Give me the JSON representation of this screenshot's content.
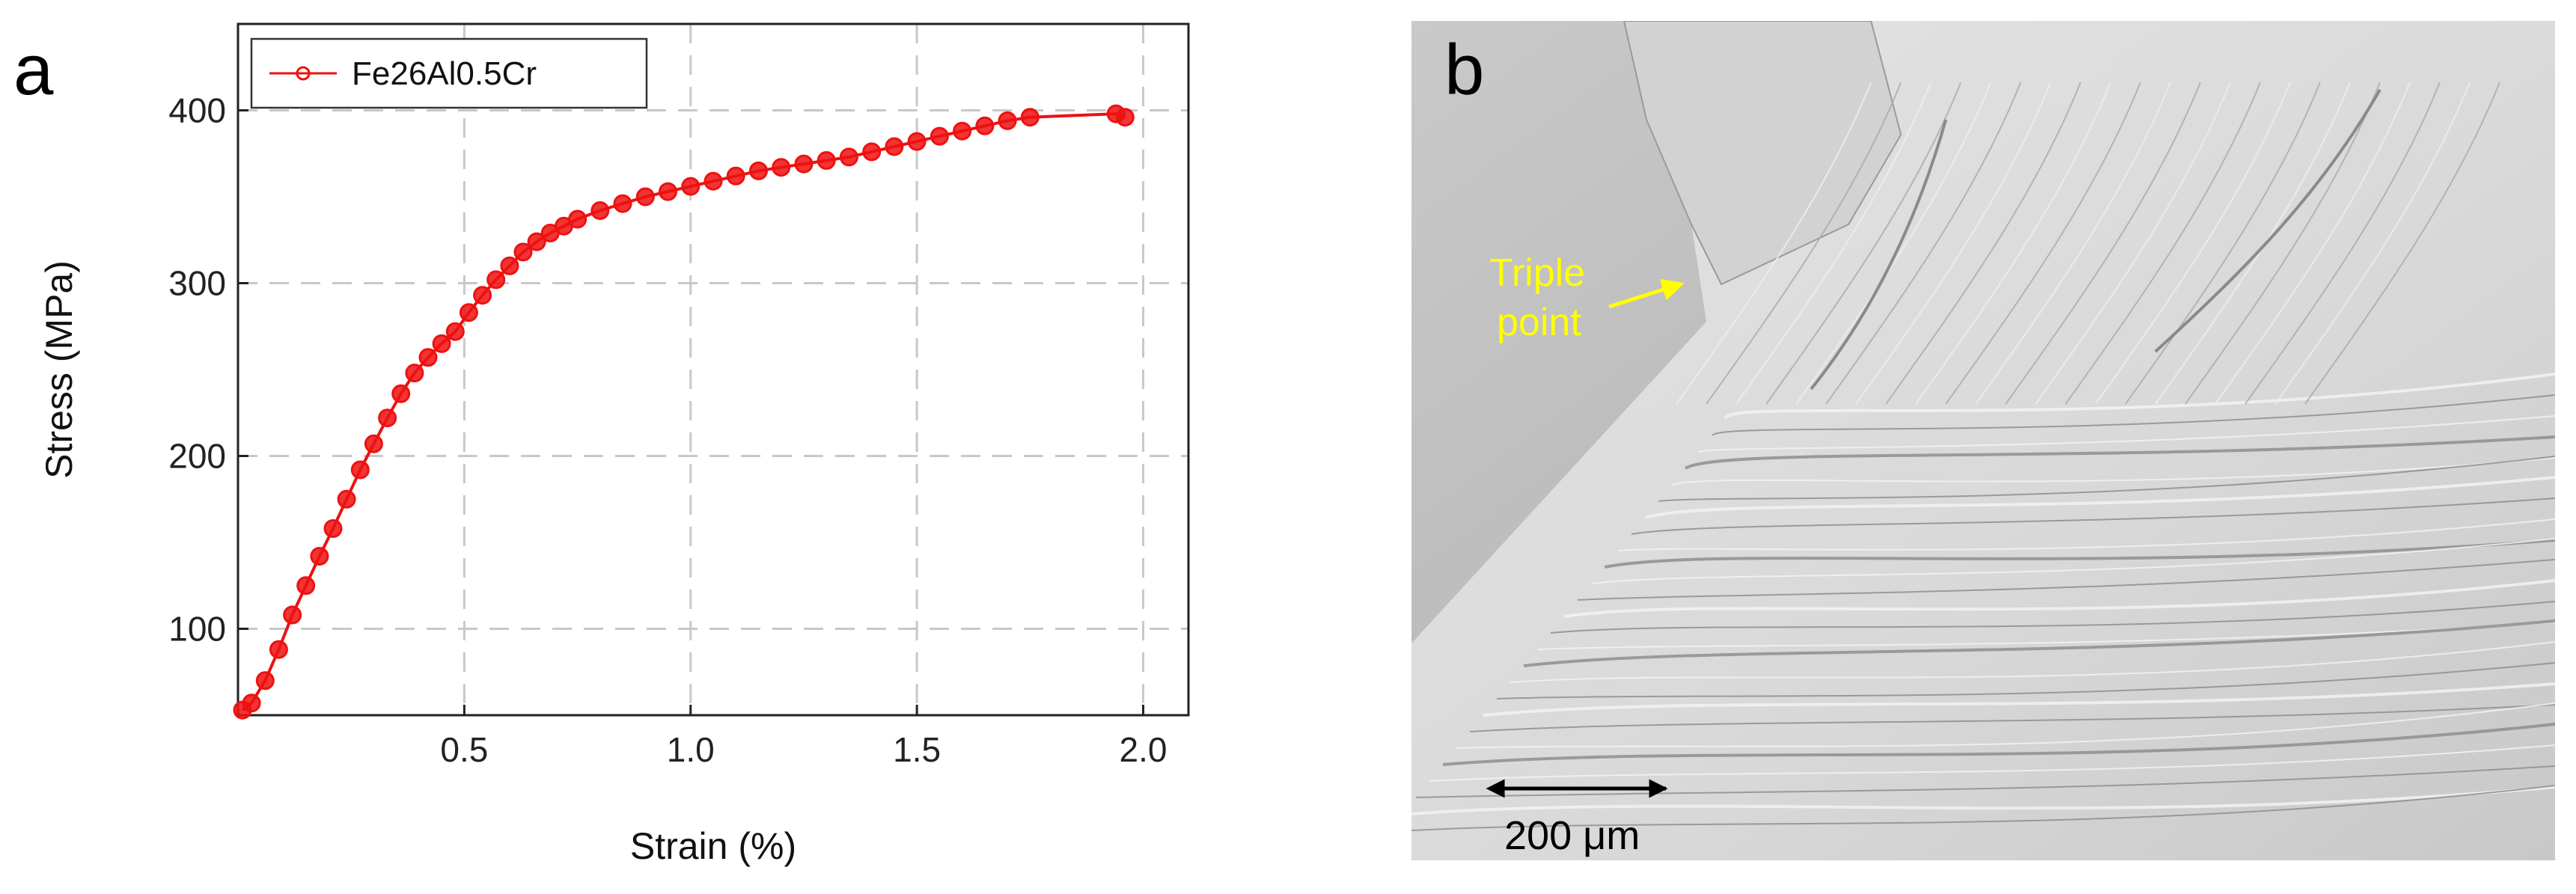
{
  "panels": {
    "a": {
      "letter": "a"
    },
    "b": {
      "letter": "b"
    }
  },
  "chart_data": {
    "type": "line",
    "xlabel": "Strain (%)",
    "ylabel": "Stress  (MPa)",
    "xlim": [
      0.0,
      2.1
    ],
    "ylim": [
      50,
      450
    ],
    "xticks": [
      0.5,
      1.0,
      1.5,
      2.0
    ],
    "xtick_labels": [
      "0.5",
      "1.0",
      "1.5",
      "2.0"
    ],
    "yticks": [
      100,
      200,
      300,
      400
    ],
    "ytick_labels": [
      "100",
      "200",
      "300",
      "400"
    ],
    "grid": true,
    "legend_position": "top-left",
    "series": [
      {
        "name": "Fe26Al0.5Cr",
        "color": "#ee1111",
        "marker": "circle",
        "x": [
          0.01,
          0.03,
          0.06,
          0.09,
          0.12,
          0.15,
          0.18,
          0.21,
          0.24,
          0.27,
          0.3,
          0.33,
          0.36,
          0.39,
          0.42,
          0.45,
          0.48,
          0.51,
          0.54,
          0.57,
          0.6,
          0.63,
          0.66,
          0.69,
          0.72,
          0.75,
          0.8,
          0.85,
          0.9,
          0.95,
          1.0,
          1.05,
          1.1,
          1.15,
          1.2,
          1.25,
          1.3,
          1.35,
          1.4,
          1.45,
          1.5,
          1.55,
          1.6,
          1.65,
          1.7,
          1.75,
          1.94,
          1.96
        ],
        "y": [
          53,
          57,
          70,
          88,
          108,
          125,
          142,
          158,
          175,
          192,
          207,
          222,
          236,
          248,
          257,
          265,
          272,
          283,
          293,
          302,
          310,
          318,
          324,
          329,
          333,
          337,
          342,
          346,
          350,
          353,
          356,
          359,
          362,
          365,
          367,
          369,
          371,
          373,
          376,
          379,
          382,
          385,
          388,
          391,
          394,
          396,
          398,
          396
        ]
      }
    ]
  },
  "micrograph": {
    "annotation_line1": "Triple",
    "annotation_line2": "point",
    "annotation_color": "#ffff00",
    "scale_bar_label": "200 μm"
  }
}
